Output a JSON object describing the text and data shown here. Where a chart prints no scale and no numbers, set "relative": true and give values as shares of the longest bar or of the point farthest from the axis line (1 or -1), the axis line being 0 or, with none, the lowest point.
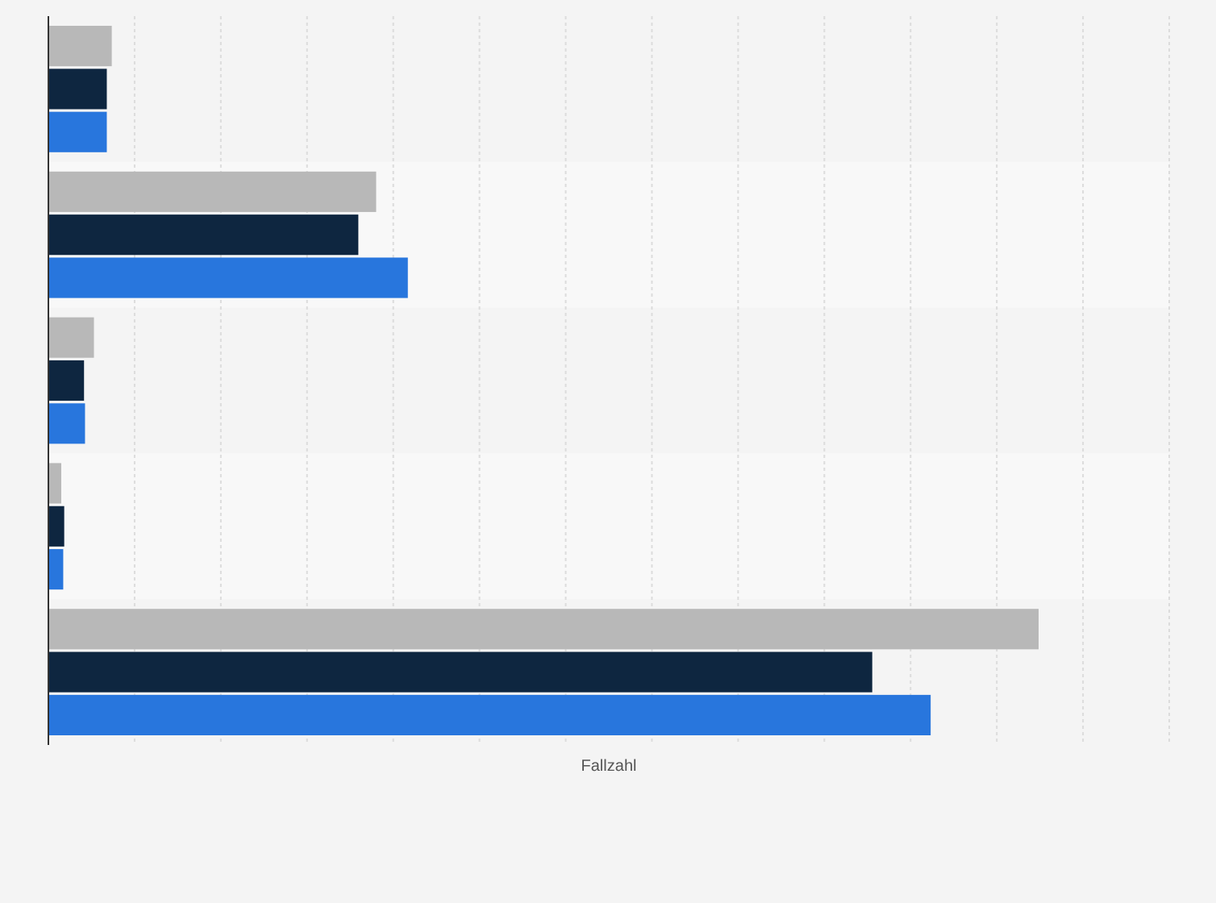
{
  "chart_data": {
    "type": "bar",
    "orientation": "horizontal",
    "relative": true,
    "xlabel": "Fallzahl",
    "grid": "x",
    "categories": [
      null,
      null,
      null,
      null,
      null
    ],
    "series": [
      {
        "color": "#b8b8b8",
        "values": [
          0.064,
          0.331,
          0.046,
          0.013,
          1
        ]
      },
      {
        "color": "#0e2640",
        "values": [
          0.059,
          0.313,
          0.036,
          0.016,
          0.832
        ]
      },
      {
        "color": "#2876dd",
        "values": [
          0.059,
          0.363,
          0.037,
          0.015,
          0.891
        ]
      }
    ]
  }
}
